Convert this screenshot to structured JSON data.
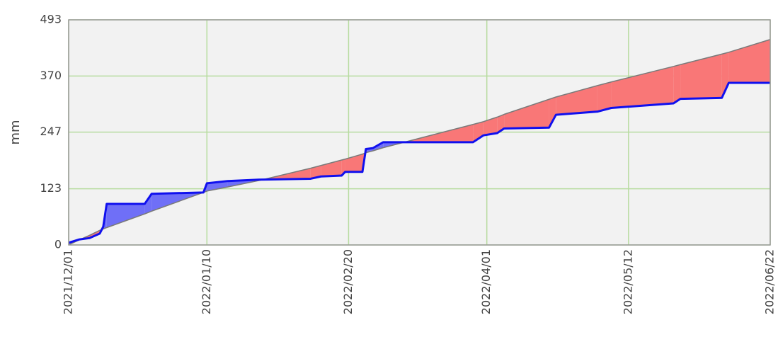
{
  "chart_data": {
    "type": "line",
    "ylabel": "mm",
    "x": [
      "2021/12/01",
      "2021/12/04",
      "2021/12/07",
      "2021/12/10",
      "2021/12/11",
      "2021/12/12",
      "2021/12/23",
      "2021/12/25",
      "2022/01/09",
      "2022/01/10",
      "2022/01/16",
      "2022/01/25",
      "2022/02/09",
      "2022/02/12",
      "2022/02/18",
      "2022/02/19",
      "2022/02/24",
      "2022/02/25",
      "2022/02/27",
      "2022/03/02",
      "2022/03/28",
      "2022/03/31",
      "2022/04/04",
      "2022/04/06",
      "2022/04/19",
      "2022/04/21",
      "2022/05/03",
      "2022/05/07",
      "2022/05/25",
      "2022/05/27",
      "2022/06/08",
      "2022/06/10",
      "2022/06/22"
    ],
    "series": [
      {
        "color": "#7a7a7a",
        "values": [
          0,
          11,
          21,
          32,
          35,
          38,
          68,
          74,
          115,
          118,
          127,
          141,
          168,
          174,
          186,
          188,
          199,
          202,
          206,
          213,
          264,
          270,
          280,
          286,
          319,
          324,
          349,
          357,
          391,
          395,
          418,
          422,
          450
        ]
      },
      {
        "color": "#1010ee",
        "values": [
          5,
          12,
          15,
          25,
          40,
          90,
          90,
          112,
          115,
          135,
          140,
          143,
          145,
          150,
          152,
          160,
          160,
          210,
          212,
          225,
          225,
          240,
          245,
          255,
          257,
          285,
          292,
          300,
          310,
          320,
          322,
          355,
          355
        ]
      }
    ],
    "fill_colors": {
      "surplus": "#6f6ff7",
      "deficit": "#f97777"
    },
    "xlim": [
      "2021/12/01",
      "2022/06/22"
    ],
    "xticks": [
      "2021/12/01",
      "2022/01/10",
      "2022/02/20",
      "2022/04/01",
      "2022/05/12",
      "2022/06/22"
    ],
    "ylim": [
      0,
      493
    ],
    "yticks": [
      0,
      123,
      247,
      370,
      493
    ],
    "grid": true,
    "grid_color": "#b8dca0"
  }
}
